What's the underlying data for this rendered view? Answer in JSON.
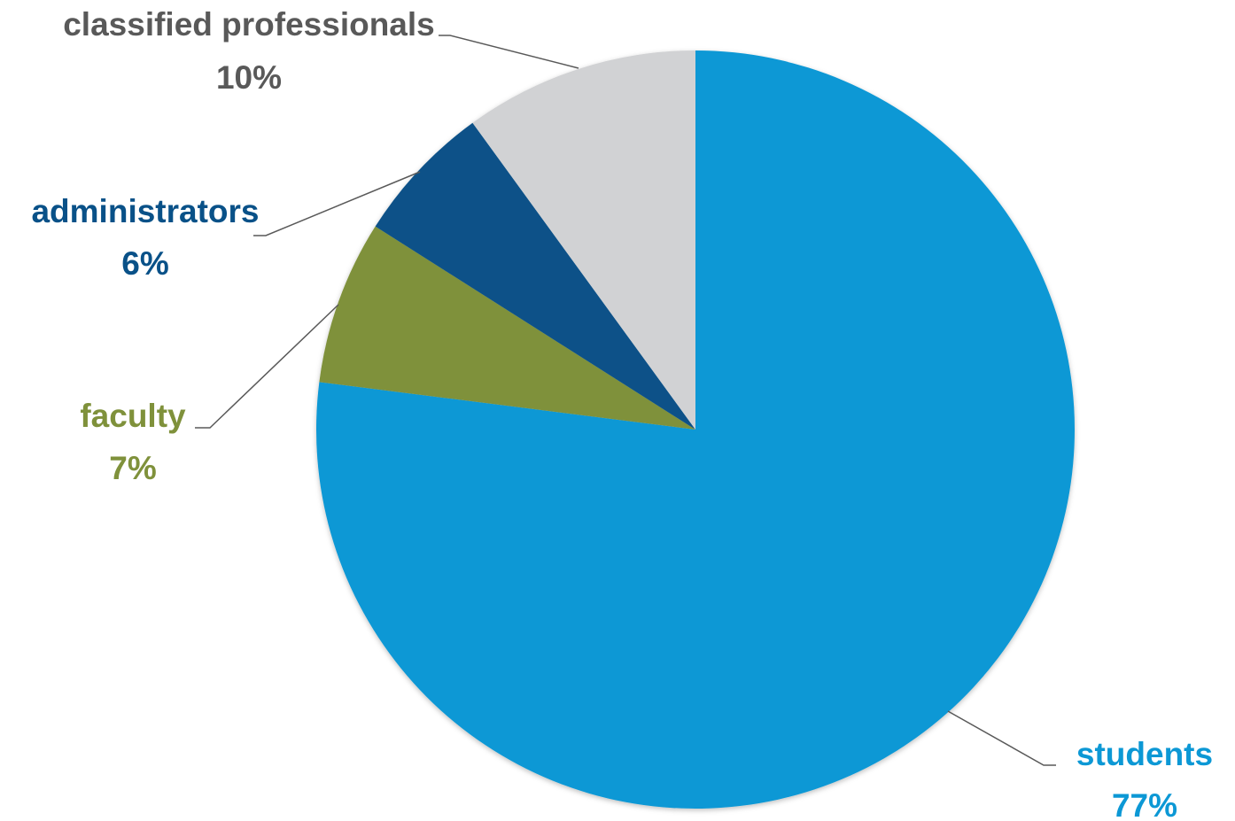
{
  "chart_data": {
    "type": "pie",
    "title": "",
    "start_angle_deg": 0,
    "direction": "clockwise",
    "slices": [
      {
        "name": "students",
        "value": 77,
        "percent_label": "77%",
        "color": "#0c98d5"
      },
      {
        "name": "faculty",
        "value": 7,
        "percent_label": "7%",
        "color": "#7f913b"
      },
      {
        "name": "administrators",
        "value": 6,
        "percent_label": "6%",
        "color": "#095188"
      },
      {
        "name": "classified professionals",
        "value": 10,
        "percent_label": "10%",
        "color": "#d1d2d4"
      }
    ],
    "label_colors": {
      "students": "#0c98d5",
      "faculty": "#7f913b",
      "administrators": "#095188",
      "classified professionals": "#595959"
    },
    "leader_line_color": "#595959"
  }
}
